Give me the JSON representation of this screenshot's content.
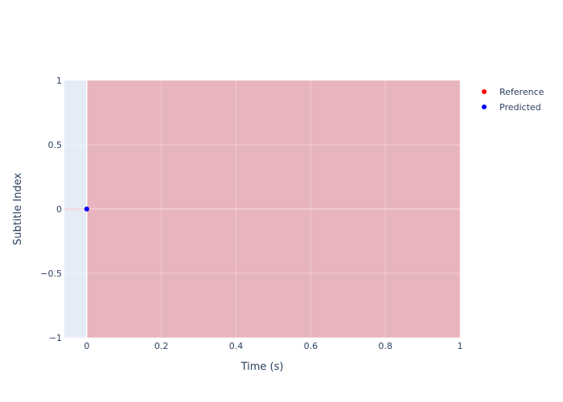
{
  "chart_data": {
    "type": "scatter",
    "xlabel": "Time (s)",
    "ylabel": "Subtitle Index",
    "xlim": [
      -0.06,
      1
    ],
    "ylim": [
      -1,
      1
    ],
    "x_ticks": [
      0,
      0.2,
      0.4,
      0.6,
      0.8,
      1
    ],
    "x_tick_labels": [
      "0",
      "0.2",
      "0.4",
      "0.6",
      "0.8",
      "1"
    ],
    "y_ticks": [
      1,
      0.5,
      0,
      -0.5,
      -1
    ],
    "y_tick_labels": [
      "1",
      "0.5",
      "0",
      "−0.5",
      "−1"
    ],
    "grid": true,
    "legend_position": "top-right",
    "shaded_region": {
      "x_start": 0,
      "x_end": 1,
      "color": "#e8b4bd"
    },
    "series": [
      {
        "name": "Reference",
        "color": "#ff0000",
        "points": [
          [
            0,
            0
          ]
        ]
      },
      {
        "name": "Predicted",
        "color": "#0000ff",
        "points": [
          [
            0,
            0
          ]
        ]
      }
    ]
  },
  "colors": {
    "plot_bg": "#e5ecf6",
    "grid": "#ffffff",
    "text": "#2a3f5f"
  }
}
